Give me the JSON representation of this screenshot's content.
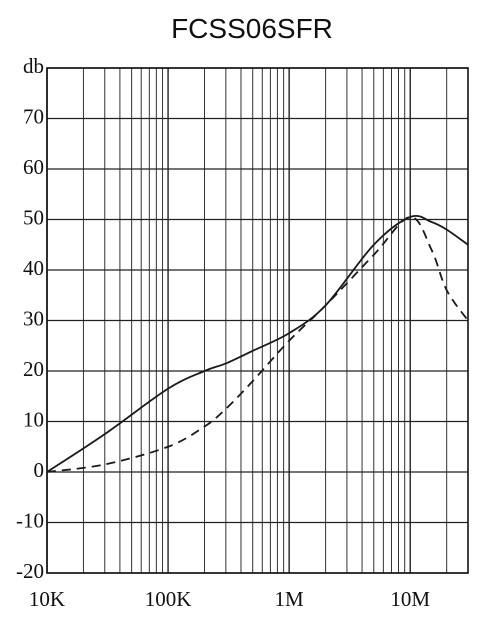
{
  "chart_data": {
    "type": "line",
    "title": "FCSS06SFR",
    "x": [
      10000,
      30000,
      100000,
      200000,
      300000,
      500000,
      1000000,
      2000000,
      5000000,
      10000000,
      15000000,
      20000000,
      30000000
    ],
    "series": [
      {
        "color": "#1a1a1a",
        "dash": false,
        "values": [
          0,
          7.5,
          16.5,
          20,
          21.5,
          24,
          27.5,
          33,
          45,
          50.5,
          49.5,
          48,
          45
        ]
      },
      {
        "color": "#1a1a1a",
        "dash": true,
        "values": [
          0,
          1.5,
          5,
          9,
          12.5,
          18,
          26,
          33,
          43,
          50.5,
          44,
          36,
          30
        ]
      }
    ],
    "xscale": "log",
    "xlim": [
      10000,
      30000000
    ],
    "xticks": [
      {
        "value": 10000,
        "label": "10K"
      },
      {
        "value": 100000,
        "label": "100K"
      },
      {
        "value": 1000000,
        "label": "1M"
      },
      {
        "value": 10000000,
        "label": "10M"
      }
    ],
    "ylim": [
      -20,
      80
    ],
    "yticks": [
      -20,
      -10,
      0,
      10,
      20,
      30,
      40,
      50,
      60,
      70,
      {
        "value": 80,
        "label": "db"
      }
    ],
    "grid": true,
    "minor_grid": true
  }
}
